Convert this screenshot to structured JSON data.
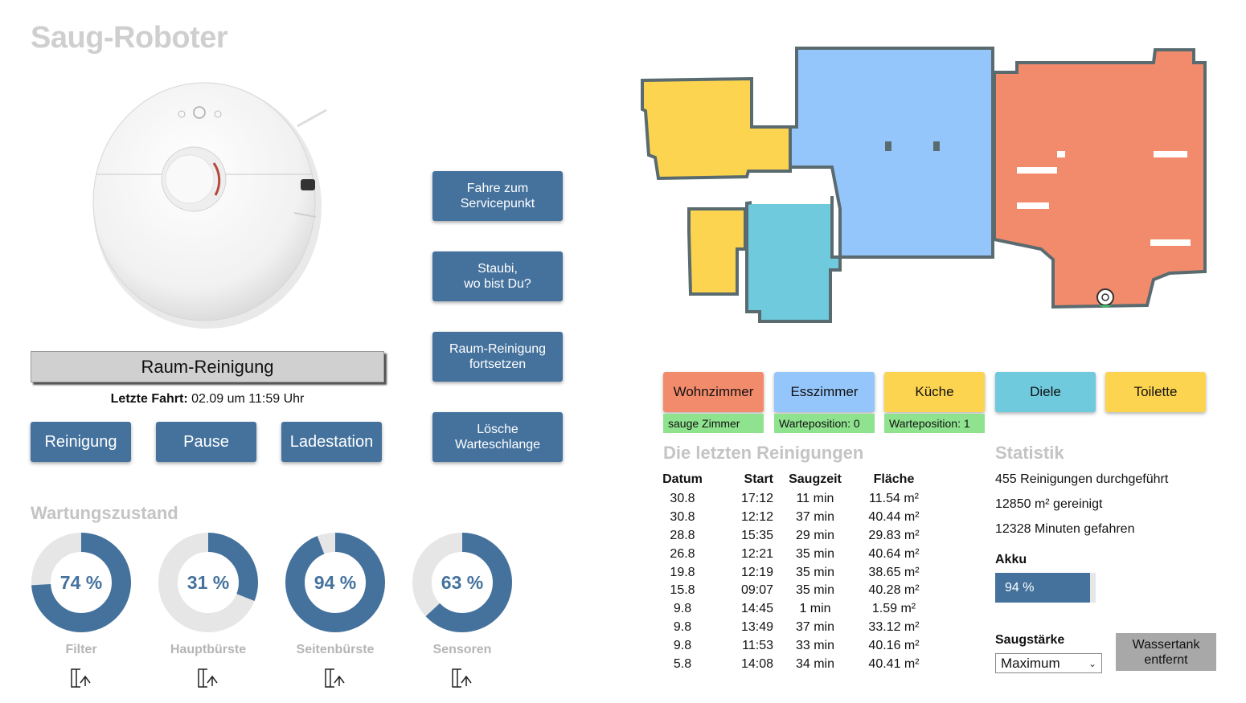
{
  "app": {
    "title": "Saug-Roboter"
  },
  "actions": {
    "service_point": "Fahre zum\nServicepunkt",
    "locate": "Staubi,\nwo bist Du?",
    "resume_room": "Raum-Reinigung\nfortsetzen",
    "clear_queue": "Lösche\nWarteschlange"
  },
  "mode": {
    "label": "Raum-Reinigung"
  },
  "last_run": {
    "label": "Letzte Fahrt:",
    "value": "02.09 um 11:59 Uhr"
  },
  "controls": {
    "clean": "Reinigung",
    "pause": "Pause",
    "dock": "Ladestation"
  },
  "maintenance": {
    "title": "Wartungszustand",
    "items": [
      {
        "label": "Filter",
        "value_text": "74 %",
        "percent": 74
      },
      {
        "label": "Hauptbürste",
        "value_text": "31 %",
        "percent": 31
      },
      {
        "label": "Seitenbürste",
        "value_text": "94 %",
        "percent": 94
      },
      {
        "label": "Sensoren",
        "value_text": "63 %",
        "percent": 63
      }
    ]
  },
  "rooms": [
    {
      "label": "Wohnzimmer",
      "color": "#f28b6c",
      "status": "sauge Zimmer"
    },
    {
      "label": "Esszimmer",
      "color": "#95c6fb",
      "status": "Warteposition: 0"
    },
    {
      "label": "Küche",
      "color": "#fcd450",
      "status": "Warteposition: 1"
    },
    {
      "label": "Diele",
      "color": "#6ecadc",
      "status": ""
    },
    {
      "label": "Toilette",
      "color": "#fcd450",
      "status": ""
    }
  ],
  "history": {
    "title": "Die letzten Reinigungen",
    "headers": [
      "Datum",
      "Start",
      "Saugzeit",
      "Fläche"
    ],
    "rows": [
      [
        "30.8",
        "17:12",
        "11 min",
        "11.54 m²"
      ],
      [
        "30.8",
        "12:12",
        "37 min",
        "40.44 m²"
      ],
      [
        "28.8",
        "15:35",
        "29 min",
        "29.83 m²"
      ],
      [
        "26.8",
        "12:21",
        "35 min",
        "40.64 m²"
      ],
      [
        "19.8",
        "12:19",
        "35 min",
        "38.65 m²"
      ],
      [
        "15.8",
        "09:07",
        "35 min",
        "40.28 m²"
      ],
      [
        "9.8",
        "14:45",
        "1 min",
        "1.59 m²"
      ],
      [
        "9.8",
        "13:49",
        "37 min",
        "33.12 m²"
      ],
      [
        "9.8",
        "11:53",
        "33 min",
        "40.16 m²"
      ],
      [
        "5.8",
        "14:08",
        "34 min",
        "40.41 m²"
      ]
    ]
  },
  "stats": {
    "title": "Statistik",
    "cleanings": "455 Reinigungen durchgeführt",
    "area": "12850 m² gereinigt",
    "minutes": "12328 Minuten gefahren",
    "battery_label": "Akku",
    "battery_text": "94 %",
    "battery_percent": 94
  },
  "suction": {
    "label": "Saugstärke",
    "selected": "Maximum"
  },
  "water_tank": {
    "label": "Wassertank\nentfernt"
  },
  "colors": {
    "accent": "#44729d",
    "gauge_track": "#e6e6e6"
  }
}
